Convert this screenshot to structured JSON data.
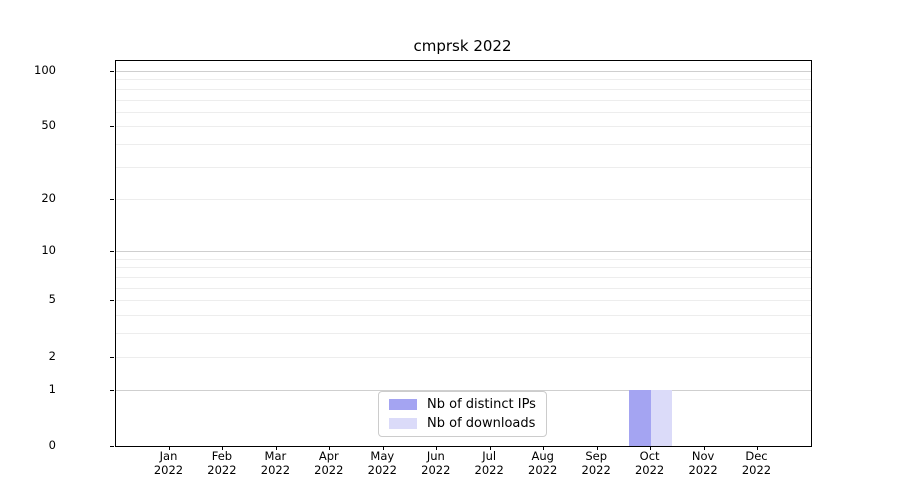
{
  "chart_data": {
    "type": "bar",
    "title": "cmprsk 2022",
    "categories": [
      "Jan",
      "Feb",
      "Mar",
      "Apr",
      "May",
      "Jun",
      "Jul",
      "Aug",
      "Sep",
      "Oct",
      "Nov",
      "Dec"
    ],
    "x_year_label": "2022",
    "series": [
      {
        "name": "Nb of distinct IPs",
        "color": "#a4a4f2",
        "values": [
          0,
          0,
          0,
          0,
          0,
          0,
          0,
          0,
          0,
          1,
          0,
          0
        ]
      },
      {
        "name": "Nb of downloads",
        "color": "#dbdbf9",
        "values": [
          0,
          0,
          0,
          0,
          0,
          0,
          0,
          0,
          0,
          1,
          0,
          0
        ]
      }
    ],
    "y_ticks": [
      0,
      1,
      2,
      5,
      10,
      20,
      50,
      100
    ],
    "y_scale": "log1p",
    "ylim": [
      0,
      113
    ],
    "grid": {
      "major_values": [
        1,
        10,
        100
      ],
      "minor_values": [
        2,
        3,
        4,
        5,
        6,
        7,
        8,
        9,
        20,
        30,
        40,
        50,
        60,
        70,
        80,
        90
      ],
      "major_color": "#cfcfcf",
      "minor_color": "#ededed"
    },
    "legend_position": "lower center",
    "axis_color": "#000000",
    "background_color": "#ffffff"
  }
}
